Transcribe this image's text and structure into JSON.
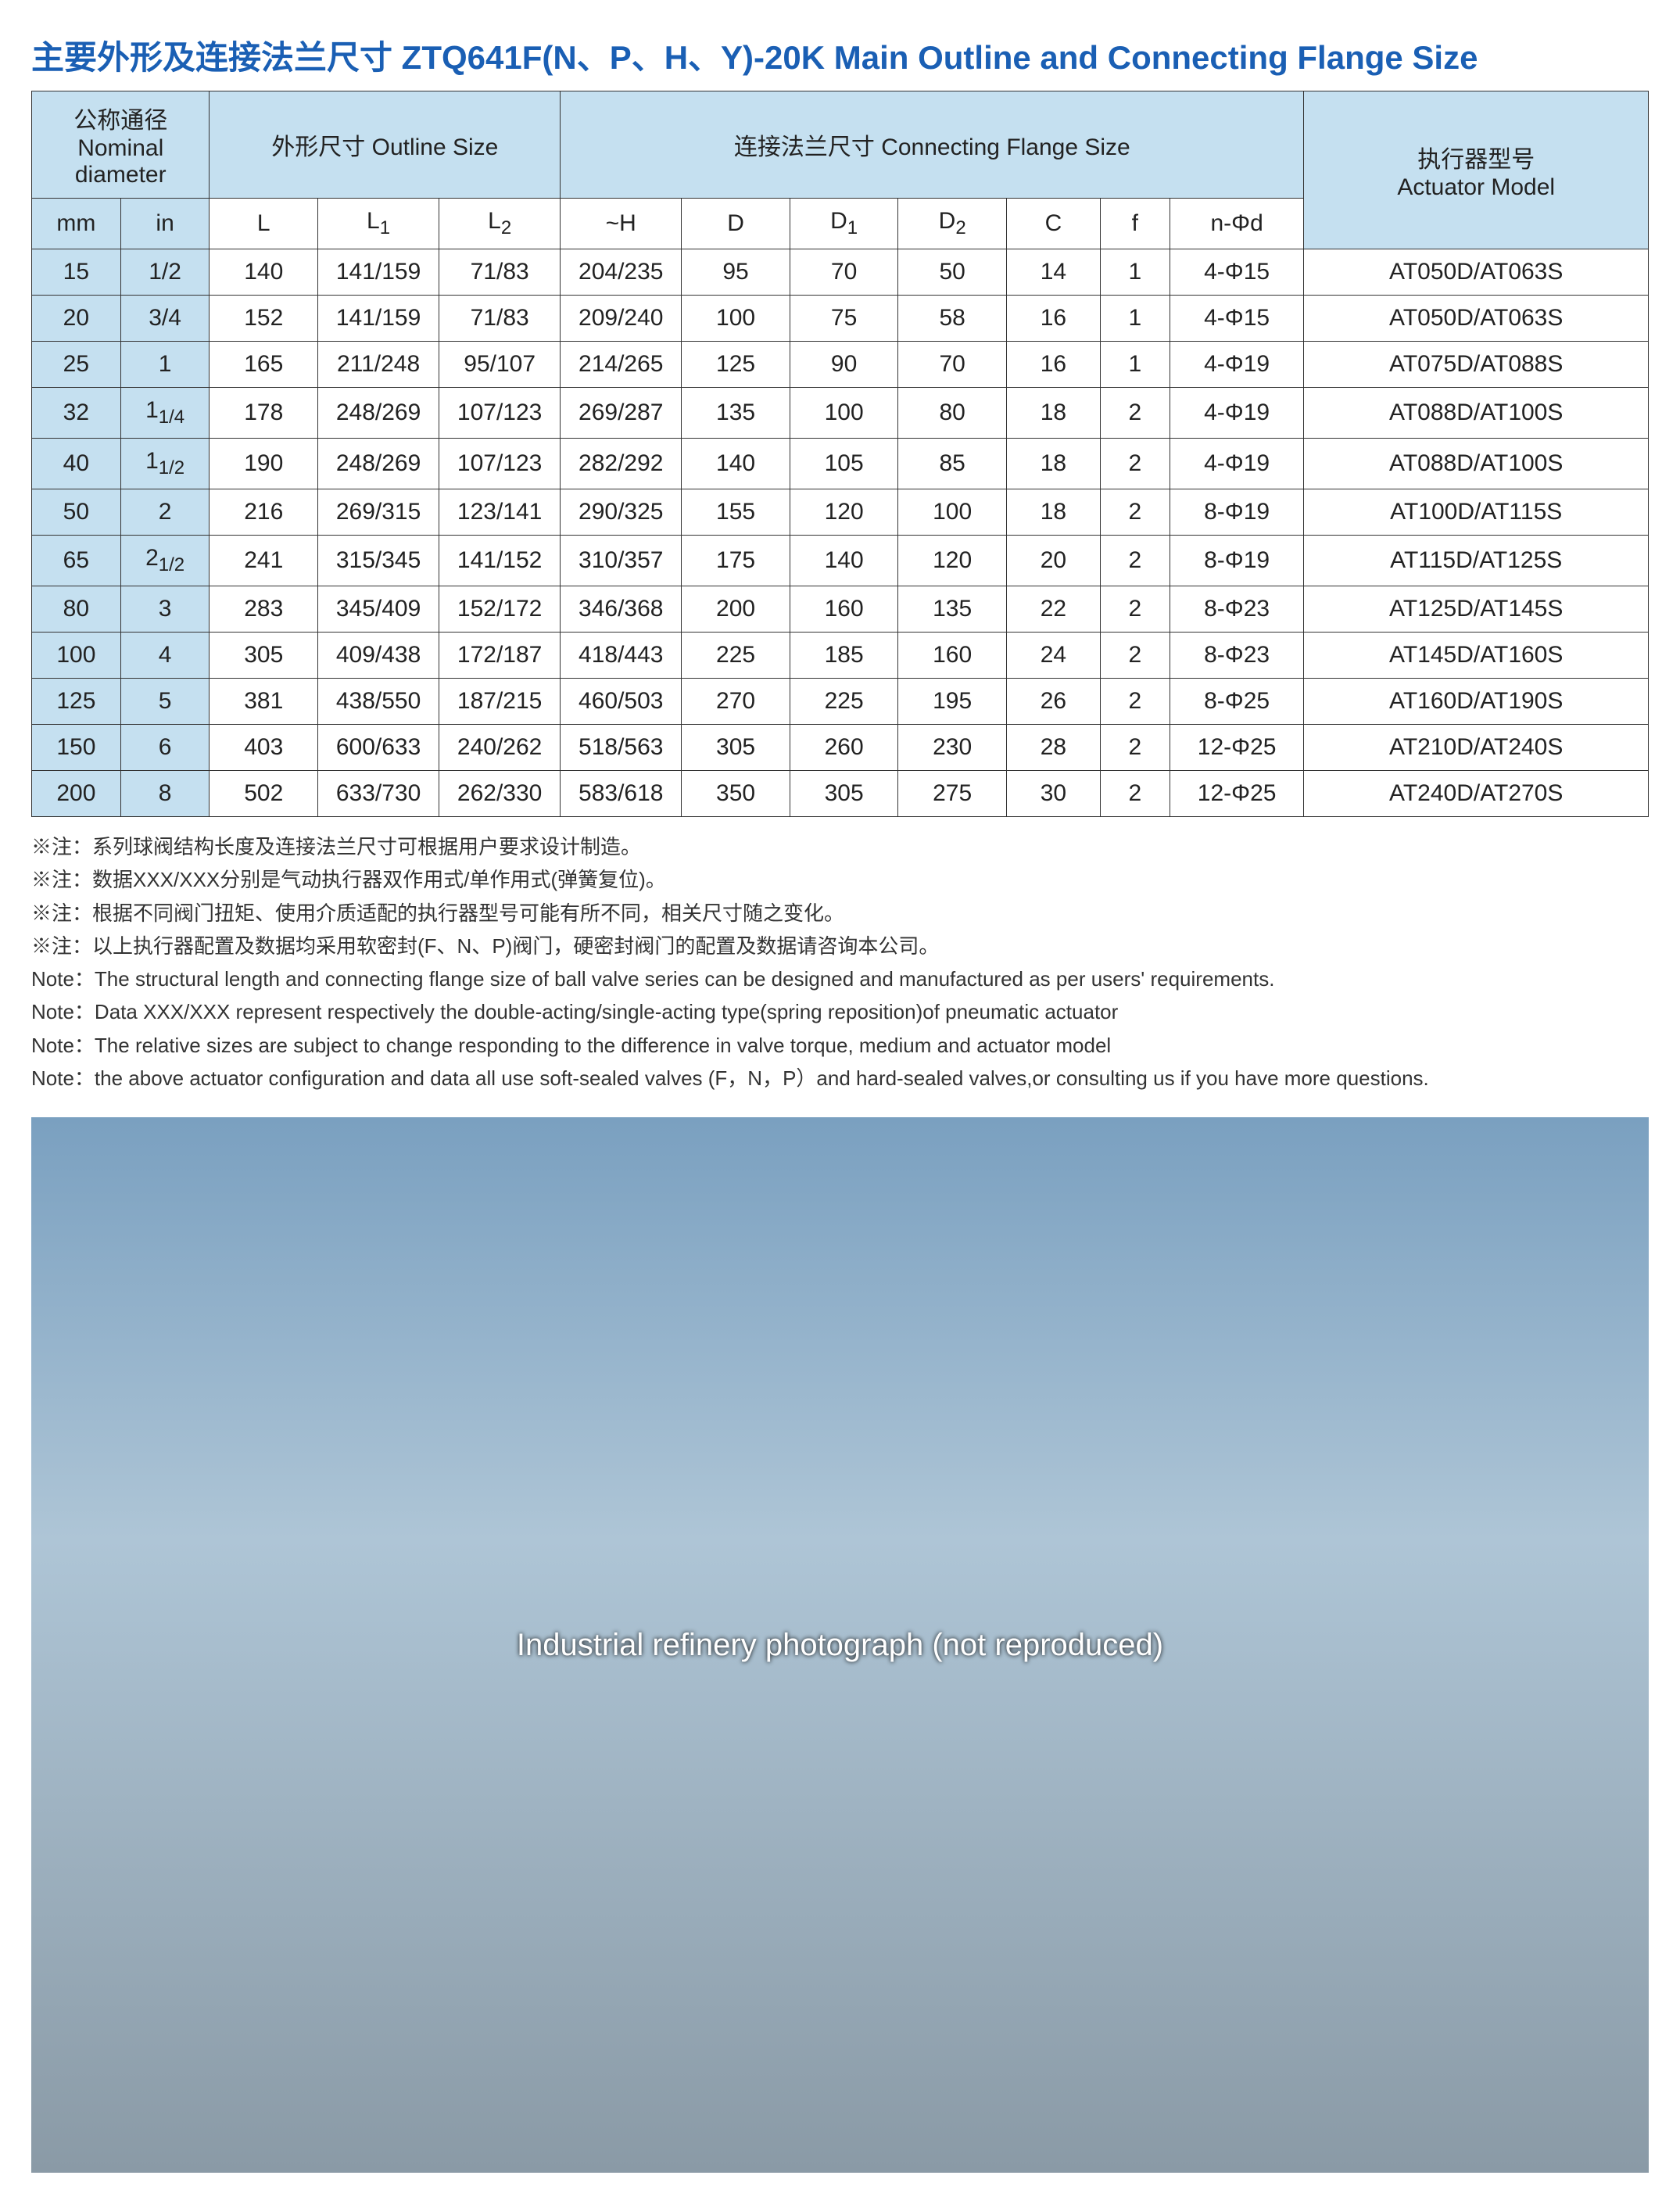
{
  "title_cn": "主要外形及连接法兰尺寸 ZTQ641F(N、P、H、Y)-20K",
  "title_en": "  Main Outline and Connecting Flange Size",
  "headers": {
    "nominal_top_cn": "公称通径",
    "nominal_top_en": "Nominal diameter",
    "outline_cn": "外形尺寸 Outline Size",
    "flange_cn": "连接法兰尺寸 Connecting Flange Size",
    "actuator_cn": "执行器型号",
    "actuator_en": "Actuator Model",
    "mm": "mm",
    "in": "in",
    "L": "L",
    "L1": "L",
    "L1_sub": "1",
    "L2": "L",
    "L2_sub": "2",
    "H": "~H",
    "D": "D",
    "D1": "D",
    "D1_sub": "1",
    "D2": "D",
    "D2_sub": "2",
    "C": "C",
    "f": "f",
    "nphi": "n-Φd"
  },
  "rows": [
    {
      "mm": "15",
      "in": "1/2",
      "L": "140",
      "L1": "141/159",
      "L2": "71/83",
      "H": "204/235",
      "D": "95",
      "D1": "70",
      "D2": "50",
      "C": "14",
      "f": "1",
      "nphi": "4-Φ15",
      "act": "AT050D/AT063S"
    },
    {
      "mm": "20",
      "in": "3/4",
      "L": "152",
      "L1": "141/159",
      "L2": "71/83",
      "H": "209/240",
      "D": "100",
      "D1": "75",
      "D2": "58",
      "C": "16",
      "f": "1",
      "nphi": "4-Φ15",
      "act": "AT050D/AT063S"
    },
    {
      "mm": "25",
      "in": "1",
      "L": "165",
      "L1": "211/248",
      "L2": "95/107",
      "H": "214/265",
      "D": "125",
      "D1": "90",
      "D2": "70",
      "C": "16",
      "f": "1",
      "nphi": "4-Φ19",
      "act": "AT075D/AT088S"
    },
    {
      "mm": "32",
      "in": "1¼",
      "L": "178",
      "L1": "248/269",
      "L2": "107/123",
      "H": "269/287",
      "D": "135",
      "D1": "100",
      "D2": "80",
      "C": "18",
      "f": "2",
      "nphi": "4-Φ19",
      "act": "AT088D/AT100S"
    },
    {
      "mm": "40",
      "in": "1½",
      "L": "190",
      "L1": "248/269",
      "L2": "107/123",
      "H": "282/292",
      "D": "140",
      "D1": "105",
      "D2": "85",
      "C": "18",
      "f": "2",
      "nphi": "4-Φ19",
      "act": "AT088D/AT100S"
    },
    {
      "mm": "50",
      "in": "2",
      "L": "216",
      "L1": "269/315",
      "L2": "123/141",
      "H": "290/325",
      "D": "155",
      "D1": "120",
      "D2": "100",
      "C": "18",
      "f": "2",
      "nphi": "8-Φ19",
      "act": "AT100D/AT115S"
    },
    {
      "mm": "65",
      "in": "2½",
      "L": "241",
      "L1": "315/345",
      "L2": "141/152",
      "H": "310/357",
      "D": "175",
      "D1": "140",
      "D2": "120",
      "C": "20",
      "f": "2",
      "nphi": "8-Φ19",
      "act": "AT115D/AT125S"
    },
    {
      "mm": "80",
      "in": "3",
      "L": "283",
      "L1": "345/409",
      "L2": "152/172",
      "H": "346/368",
      "D": "200",
      "D1": "160",
      "D2": "135",
      "C": "22",
      "f": "2",
      "nphi": "8-Φ23",
      "act": "AT125D/AT145S"
    },
    {
      "mm": "100",
      "in": "4",
      "L": "305",
      "L1": "409/438",
      "L2": "172/187",
      "H": "418/443",
      "D": "225",
      "D1": "185",
      "D2": "160",
      "C": "24",
      "f": "2",
      "nphi": "8-Φ23",
      "act": "AT145D/AT160S"
    },
    {
      "mm": "125",
      "in": "5",
      "L": "381",
      "L1": "438/550",
      "L2": "187/215",
      "H": "460/503",
      "D": "270",
      "D1": "225",
      "D2": "195",
      "C": "26",
      "f": "2",
      "nphi": "8-Φ25",
      "act": "AT160D/AT190S"
    },
    {
      "mm": "150",
      "in": "6",
      "L": "403",
      "L1": "600/633",
      "L2": "240/262",
      "H": "518/563",
      "D": "305",
      "D1": "260",
      "D2": "230",
      "C": "28",
      "f": "2",
      "nphi": "12-Φ25",
      "act": "AT210D/AT240S"
    },
    {
      "mm": "200",
      "in": "8",
      "L": "502",
      "L1": "633/730",
      "L2": "262/330",
      "H": "583/618",
      "D": "350",
      "D1": "305",
      "D2": "275",
      "C": "30",
      "f": "2",
      "nphi": "12-Φ25",
      "act": "AT240D/AT270S"
    }
  ],
  "notes": [
    "※注：系列球阀结构长度及连接法兰尺寸可根据用户要求设计制造。",
    "※注：数据XXX/XXX分别是气动执行器双作用式/单作用式(弹簧复位)。",
    "※注：根据不同阀门扭矩、使用介质适配的执行器型号可能有所不同，相关尺寸随之变化。",
    "※注：以上执行器配置及数据均采用软密封(F、N、P)阀门，硬密封阀门的配置及数据请咨询本公司。",
    "Note：The structural length and connecting flange size of ball valve series can be designed and manufactured as per users' requirements.",
    "Note：Data XXX/XXX represent respectively the double-acting/single-acting type(spring reposition)of pneumatic actuator",
    "Note：The relative sizes are subject to change responding to the difference in valve torque, medium and actuator model",
    "Note：the above actuator  configuration and data  all use soft-sealed valves (F，N，P）and  hard-sealed valves,or consulting us if you have more questions."
  ],
  "photo_caption": "Industrial refinery photograph (not reproduced)",
  "colors": {
    "title": "#1a5fb4",
    "header_bg": "#c5e0f0",
    "border": "#333333",
    "text": "#222222"
  }
}
